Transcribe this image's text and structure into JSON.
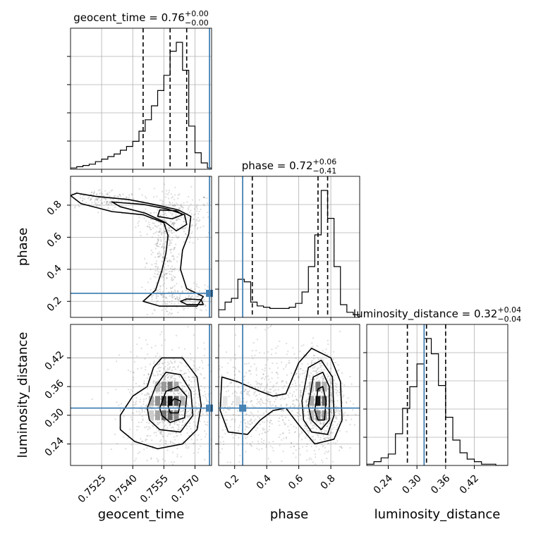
{
  "chart_data": {
    "type": "corner",
    "parameters": [
      "geocent_time",
      "phase",
      "luminosity_distance"
    ],
    "truth_color": "#4682b4",
    "injected_truth": {
      "geocent_time": 0.7577,
      "phase": 0.25,
      "luminosity_distance": 0.315
    },
    "titles": [
      {
        "param": "geocent_time",
        "prefix": "geocent_time = ",
        "value": "0.76",
        "plus": "+0.00",
        "minus": "−0.00"
      },
      {
        "param": "phase",
        "prefix": "phase = ",
        "value": "0.72",
        "plus": "+0.06",
        "minus": "−0.41"
      },
      {
        "param": "luminosity_distance",
        "prefix": "luminosity_distance = ",
        "value": "0.32",
        "plus": "+0.04",
        "minus": "−0.04"
      }
    ],
    "ranges": {
      "geocent_time": [
        0.751,
        0.7578
      ],
      "phase": [
        0.1,
        0.98
      ],
      "luminosity_distance": [
        0.195,
        0.49
      ]
    },
    "ticks": {
      "geocent_time": {
        "values": [
          0.7525,
          0.754,
          0.7555,
          0.757
        ],
        "labels": [
          "0.7525",
          "0.7540",
          "0.7555",
          "0.7570"
        ]
      },
      "phase": {
        "values": [
          0.2,
          0.4,
          0.6,
          0.8
        ],
        "labels": [
          "0.2",
          "0.4",
          "0.6",
          "0.8"
        ]
      },
      "luminosity_distance": {
        "values": [
          0.24,
          0.3,
          0.36,
          0.42
        ],
        "labels": [
          "0.24",
          "0.30",
          "0.36",
          "0.42"
        ]
      }
    },
    "quantiles": {
      "geocent_time": [
        0.7545,
        0.7558,
        0.7566
      ],
      "phase": [
        0.31,
        0.72,
        0.78
      ],
      "luminosity_distance": [
        0.28,
        0.32,
        0.36
      ]
    },
    "histograms": {
      "geocent_time": {
        "edges": [
          0.751,
          0.7513,
          0.7516,
          0.7519,
          0.7522,
          0.7525,
          0.7528,
          0.7531,
          0.7534,
          0.7537,
          0.754,
          0.7543,
          0.7546,
          0.7549,
          0.7552,
          0.7555,
          0.7558,
          0.7561,
          0.7564,
          0.7567,
          0.757,
          0.7573,
          0.7576,
          0.7578
        ],
        "counts": [
          0.01,
          0.02,
          0.03,
          0.04,
          0.06,
          0.08,
          0.1,
          0.12,
          0.15,
          0.18,
          0.22,
          0.3,
          0.39,
          0.5,
          0.62,
          0.74,
          0.93,
          1.0,
          0.78,
          0.34,
          0.13,
          0.05,
          0.01
        ]
      },
      "phase": {
        "edges": [
          0.1,
          0.14,
          0.18,
          0.22,
          0.26,
          0.3,
          0.34,
          0.38,
          0.42,
          0.46,
          0.5,
          0.54,
          0.58,
          0.62,
          0.66,
          0.7,
          0.74,
          0.78,
          0.82,
          0.86,
          0.9,
          0.94,
          0.98
        ],
        "counts": [
          0.06,
          0.12,
          0.15,
          0.3,
          0.28,
          0.12,
          0.09,
          0.08,
          0.07,
          0.07,
          0.07,
          0.08,
          0.11,
          0.2,
          0.4,
          0.65,
          1.0,
          0.78,
          0.4,
          0.1,
          0.04,
          0.02
        ]
      },
      "luminosity_distance": {
        "edges": [
          0.195,
          0.21,
          0.225,
          0.24,
          0.255,
          0.27,
          0.285,
          0.3,
          0.315,
          0.33,
          0.345,
          0.36,
          0.375,
          0.39,
          0.405,
          0.42,
          0.435,
          0.45,
          0.465,
          0.48,
          0.49
        ],
        "counts": [
          0.01,
          0.03,
          0.06,
          0.09,
          0.25,
          0.45,
          0.62,
          0.8,
          1.0,
          0.88,
          0.63,
          0.38,
          0.2,
          0.1,
          0.05,
          0.03,
          0.01,
          0.01,
          0.0,
          0.0
        ]
      }
    },
    "contours": {
      "geocent_time|phase": [
        [
          [
            0.7513,
            0.875
          ],
          [
            0.7522,
            0.855
          ],
          [
            0.7538,
            0.835
          ],
          [
            0.7552,
            0.8
          ],
          [
            0.7562,
            0.77
          ],
          [
            0.7568,
            0.73
          ],
          [
            0.7567,
            0.62
          ],
          [
            0.7564,
            0.52
          ],
          [
            0.7563,
            0.4
          ],
          [
            0.7566,
            0.28
          ],
          [
            0.7574,
            0.23
          ],
          [
            0.7571,
            0.17
          ],
          [
            0.7553,
            0.17
          ],
          [
            0.7545,
            0.2
          ],
          [
            0.7551,
            0.27
          ],
          [
            0.7554,
            0.39
          ],
          [
            0.7556,
            0.5
          ],
          [
            0.7557,
            0.61
          ],
          [
            0.7555,
            0.69
          ],
          [
            0.7545,
            0.74
          ],
          [
            0.753,
            0.76
          ],
          [
            0.7515,
            0.81
          ],
          [
            0.751,
            0.86
          ]
        ],
        [
          [
            0.753,
            0.82
          ],
          [
            0.7545,
            0.805
          ],
          [
            0.7557,
            0.775
          ],
          [
            0.7565,
            0.74
          ],
          [
            0.7566,
            0.68
          ],
          [
            0.7561,
            0.64
          ],
          [
            0.7556,
            0.69
          ],
          [
            0.7546,
            0.75
          ],
          [
            0.7534,
            0.79
          ]
        ],
        [
          [
            0.7553,
            0.77
          ],
          [
            0.7561,
            0.765
          ],
          [
            0.7564,
            0.74
          ],
          [
            0.7559,
            0.715
          ],
          [
            0.7552,
            0.73
          ]
        ],
        [
          [
            0.7566,
            0.215
          ],
          [
            0.7573,
            0.21
          ],
          [
            0.7574,
            0.18
          ],
          [
            0.7566,
            0.18
          ],
          [
            0.7563,
            0.2
          ]
        ]
      ],
      "geocent_time|luminosity_distance": [
        [
          [
            0.7534,
            0.3
          ],
          [
            0.754,
            0.34
          ],
          [
            0.7547,
            0.36
          ],
          [
            0.755,
            0.4
          ],
          [
            0.7554,
            0.42
          ],
          [
            0.7564,
            0.42
          ],
          [
            0.7571,
            0.38
          ],
          [
            0.7573,
            0.32
          ],
          [
            0.7571,
            0.27
          ],
          [
            0.7564,
            0.24
          ],
          [
            0.7552,
            0.23
          ],
          [
            0.7541,
            0.245
          ],
          [
            0.7534,
            0.27
          ]
        ],
        [
          [
            0.7547,
            0.315
          ],
          [
            0.7551,
            0.36
          ],
          [
            0.7556,
            0.39
          ],
          [
            0.7563,
            0.385
          ],
          [
            0.7568,
            0.35
          ],
          [
            0.7569,
            0.3
          ],
          [
            0.7563,
            0.265
          ],
          [
            0.7553,
            0.27
          ],
          [
            0.7548,
            0.29
          ]
        ],
        [
          [
            0.7553,
            0.315
          ],
          [
            0.7556,
            0.35
          ],
          [
            0.7562,
            0.36
          ],
          [
            0.7566,
            0.34
          ],
          [
            0.7565,
            0.295
          ],
          [
            0.7558,
            0.285
          ],
          [
            0.7554,
            0.3
          ]
        ],
        [
          [
            0.7557,
            0.32
          ],
          [
            0.756,
            0.335
          ],
          [
            0.7563,
            0.33
          ],
          [
            0.7562,
            0.305
          ],
          [
            0.7558,
            0.305
          ]
        ]
      ],
      "phase|luminosity_distance": [
        [
          [
            0.12,
            0.38
          ],
          [
            0.22,
            0.37
          ],
          [
            0.36,
            0.35
          ],
          [
            0.44,
            0.34
          ],
          [
            0.52,
            0.345
          ],
          [
            0.6,
            0.41
          ],
          [
            0.68,
            0.44
          ],
          [
            0.8,
            0.42
          ],
          [
            0.86,
            0.37
          ],
          [
            0.87,
            0.29
          ],
          [
            0.82,
            0.25
          ],
          [
            0.7,
            0.24
          ],
          [
            0.6,
            0.28
          ],
          [
            0.52,
            0.315
          ],
          [
            0.44,
            0.31
          ],
          [
            0.36,
            0.29
          ],
          [
            0.28,
            0.26
          ],
          [
            0.16,
            0.265
          ],
          [
            0.11,
            0.31
          ]
        ],
        [
          [
            0.62,
            0.33
          ],
          [
            0.66,
            0.4
          ],
          [
            0.74,
            0.415
          ],
          [
            0.81,
            0.38
          ],
          [
            0.82,
            0.3
          ],
          [
            0.78,
            0.26
          ],
          [
            0.68,
            0.265
          ],
          [
            0.63,
            0.29
          ]
        ],
        [
          [
            0.66,
            0.32
          ],
          [
            0.69,
            0.38
          ],
          [
            0.75,
            0.39
          ],
          [
            0.79,
            0.36
          ],
          [
            0.79,
            0.29
          ],
          [
            0.74,
            0.27
          ],
          [
            0.68,
            0.29
          ]
        ],
        [
          [
            0.7,
            0.31
          ],
          [
            0.72,
            0.355
          ],
          [
            0.75,
            0.36
          ],
          [
            0.77,
            0.33
          ],
          [
            0.76,
            0.29
          ],
          [
            0.72,
            0.29
          ]
        ]
      ]
    },
    "density_cells": {
      "geocent_time|luminosity_distance": [
        [
          0.7549,
          0.3,
          0.2
        ],
        [
          0.7549,
          0.33,
          0.3
        ],
        [
          0.7552,
          0.3,
          0.35
        ],
        [
          0.7552,
          0.33,
          0.45
        ],
        [
          0.7552,
          0.36,
          0.25
        ],
        [
          0.7555,
          0.3,
          0.55
        ],
        [
          0.7555,
          0.33,
          0.75
        ],
        [
          0.7555,
          0.36,
          0.4
        ],
        [
          0.7558,
          0.3,
          0.6
        ],
        [
          0.7558,
          0.33,
          0.95
        ],
        [
          0.7558,
          0.36,
          0.55
        ],
        [
          0.7561,
          0.3,
          0.45
        ],
        [
          0.7561,
          0.33,
          0.65
        ],
        [
          0.7561,
          0.36,
          0.35
        ],
        [
          0.7564,
          0.33,
          0.3
        ]
      ],
      "phase|luminosity_distance": [
        [
          0.68,
          0.3,
          0.25
        ],
        [
          0.68,
          0.33,
          0.35
        ],
        [
          0.68,
          0.36,
          0.2
        ],
        [
          0.72,
          0.3,
          0.45
        ],
        [
          0.72,
          0.33,
          0.9
        ],
        [
          0.72,
          0.36,
          0.55
        ],
        [
          0.76,
          0.3,
          0.4
        ],
        [
          0.76,
          0.33,
          0.6
        ],
        [
          0.76,
          0.36,
          0.3
        ],
        [
          0.14,
          0.33,
          0.1
        ],
        [
          0.22,
          0.33,
          0.1
        ]
      ]
    },
    "scatter_note": "",
    "grid": true
  }
}
